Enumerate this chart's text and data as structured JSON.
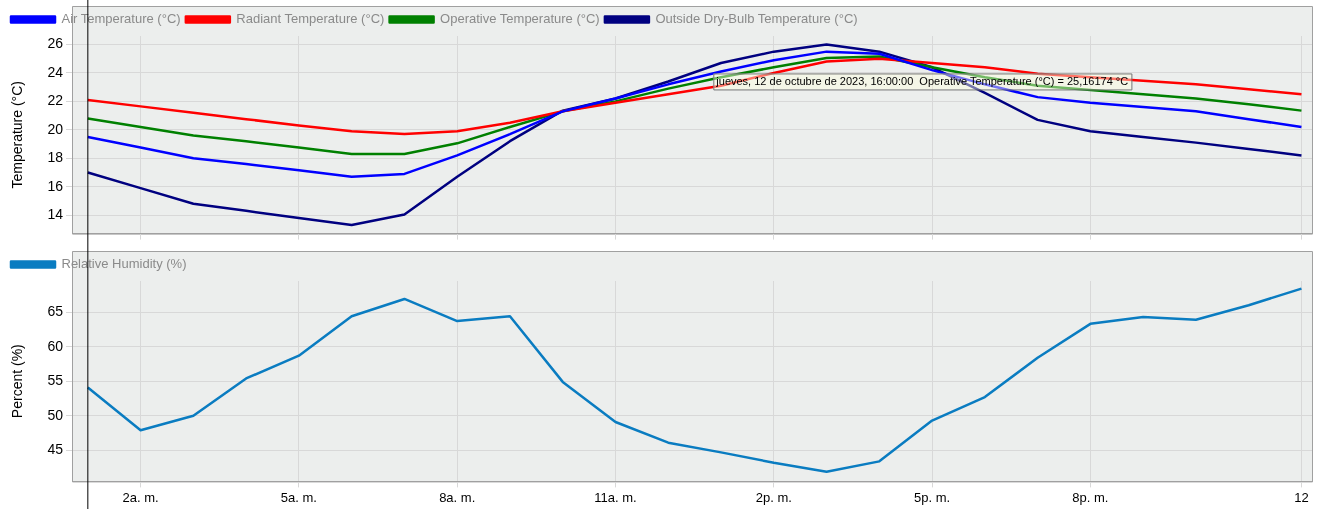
{
  "chart_data": [
    {
      "type": "line",
      "ylabel": "Temperature (°C)",
      "x": [
        "2023-10-12T01:00",
        "2023-10-12T02:00",
        "2023-10-12T03:00",
        "2023-10-12T04:00",
        "2023-10-12T05:00",
        "2023-10-12T06:00",
        "2023-10-12T07:00",
        "2023-10-12T08:00",
        "2023-10-12T09:00",
        "2023-10-12T10:00",
        "2023-10-12T11:00",
        "2023-10-12T12:00",
        "2023-10-12T13:00",
        "2023-10-12T14:00",
        "2023-10-12T15:00",
        "2023-10-12T16:00",
        "2023-10-12T17:00",
        "2023-10-12T18:00",
        "2023-10-12T19:00",
        "2023-10-12T20:00",
        "2023-10-12T21:00",
        "2023-10-12T22:00",
        "2023-10-12T23:00",
        "2023-10-13T00:00"
      ],
      "series": [
        {
          "name": "Air Temperature (°C)",
          "color": "#0000ff",
          "values": [
            19.5,
            18.75,
            18.0,
            17.6,
            17.15,
            16.7,
            16.9,
            18.2,
            19.7,
            21.3,
            22.2,
            23.2,
            24.1,
            24.9,
            25.5,
            25.35,
            24.2,
            23.2,
            22.3,
            21.9,
            21.6,
            21.3,
            20.75,
            20.2
          ]
        },
        {
          "name": "Radiant Temperature (°C)",
          "color": "#ff0000",
          "values": [
            22.1,
            21.65,
            21.2,
            20.75,
            20.3,
            19.9,
            19.7,
            19.9,
            20.5,
            21.3,
            21.9,
            22.5,
            23.1,
            24.0,
            24.8,
            25.0,
            24.7,
            24.4,
            23.95,
            23.7,
            23.45,
            23.2,
            22.85,
            22.5
          ]
        },
        {
          "name": "Operative Temperature (°C)",
          "color": "#008000",
          "values": [
            20.8,
            20.2,
            19.6,
            19.2,
            18.75,
            18.3,
            18.3,
            19.05,
            20.2,
            21.3,
            22.0,
            22.9,
            23.7,
            24.4,
            25.05,
            25.16174,
            24.4,
            23.7,
            23.1,
            22.8,
            22.5,
            22.2,
            21.8,
            21.35
          ]
        },
        {
          "name": "Outside Dry-Bulb Temperature (°C)",
          "color": "#000080",
          "values": [
            17.0,
            15.9,
            14.8,
            14.3,
            13.8,
            13.3,
            14.05,
            16.7,
            19.2,
            21.35,
            22.2,
            23.4,
            24.7,
            25.5,
            26.0,
            25.5,
            24.4,
            22.6,
            20.7,
            19.9,
            19.5,
            19.1,
            18.65,
            18.2
          ]
        }
      ],
      "xlim": [
        "2023-10-12T00:42",
        "2023-10-13T00:12"
      ],
      "xticks": [
        "2023-10-12T02:00",
        "2023-10-12T05:00",
        "2023-10-12T08:00",
        "2023-10-12T11:00",
        "2023-10-12T14:00",
        "2023-10-12T17:00",
        "2023-10-12T20:00",
        "2023-10-13T00:00"
      ],
      "ylim": [
        12.7,
        26.6
      ],
      "yticks": [
        14,
        16,
        18,
        20,
        22,
        24,
        26
      ],
      "grid": true,
      "legend": "top left",
      "marker": "none",
      "tick_labels": "y",
      "ref_lines": [
        {
          "axis": "x",
          "value": "2023-10-12T01:00",
          "color": "#000000"
        }
      ],
      "annotations": [
        {
          "text": "jueves, 12 de octubre de 2023, 16:00:00  Operative Temperature (°C) = 25,16174 °C",
          "x": "2023-10-12T16:00",
          "y": 25.16174
        }
      ]
    },
    {
      "type": "line",
      "ylabel": "Percent (%)",
      "x": [
        "2023-10-12T01:00",
        "2023-10-12T02:00",
        "2023-10-12T03:00",
        "2023-10-12T04:00",
        "2023-10-12T05:00",
        "2023-10-12T06:00",
        "2023-10-12T07:00",
        "2023-10-12T08:00",
        "2023-10-12T09:00",
        "2023-10-12T10:00",
        "2023-10-12T11:00",
        "2023-10-12T12:00",
        "2023-10-12T13:00",
        "2023-10-12T14:00",
        "2023-10-12T15:00",
        "2023-10-12T16:00",
        "2023-10-12T17:00",
        "2023-10-12T18:00",
        "2023-10-12T19:00",
        "2023-10-12T20:00",
        "2023-10-12T21:00",
        "2023-10-12T22:00",
        "2023-10-12T23:00",
        "2023-10-13T00:00"
      ],
      "series": [
        {
          "name": "Relative Humidity (%)",
          "color": "#0a7cc1",
          "values": [
            54.1,
            47.9,
            50.0,
            55.4,
            58.7,
            64.4,
            66.9,
            63.7,
            64.4,
            54.9,
            49.1,
            46.1,
            44.7,
            43.2,
            41.9,
            43.4,
            49.3,
            52.7,
            58.4,
            63.3,
            64.3,
            63.9,
            66.0,
            68.4
          ]
        }
      ],
      "xlim": [
        "2023-10-12T00:42",
        "2023-10-13T00:12"
      ],
      "xticks": [
        {
          "value": "2023-10-12T02:00",
          "label": "2a. m."
        },
        {
          "value": "2023-10-12T05:00",
          "label": "5a. m."
        },
        {
          "value": "2023-10-12T08:00",
          "label": "8a. m."
        },
        {
          "value": "2023-10-12T11:00",
          "label": "11a. m."
        },
        {
          "value": "2023-10-12T14:00",
          "label": "2p. m."
        },
        {
          "value": "2023-10-12T17:00",
          "label": "5p. m."
        },
        {
          "value": "2023-10-12T20:00",
          "label": "8p. m."
        },
        {
          "value": "2023-10-13T00:00",
          "label": "12"
        }
      ],
      "ylim": [
        40.5,
        69.5
      ],
      "yticks": [
        45,
        50,
        55,
        60,
        65
      ],
      "grid": true,
      "legend": "top left",
      "marker": "none",
      "ref_lines": [
        {
          "axis": "x",
          "value": "2023-10-12T01:00",
          "color": "#000000"
        }
      ]
    }
  ]
}
